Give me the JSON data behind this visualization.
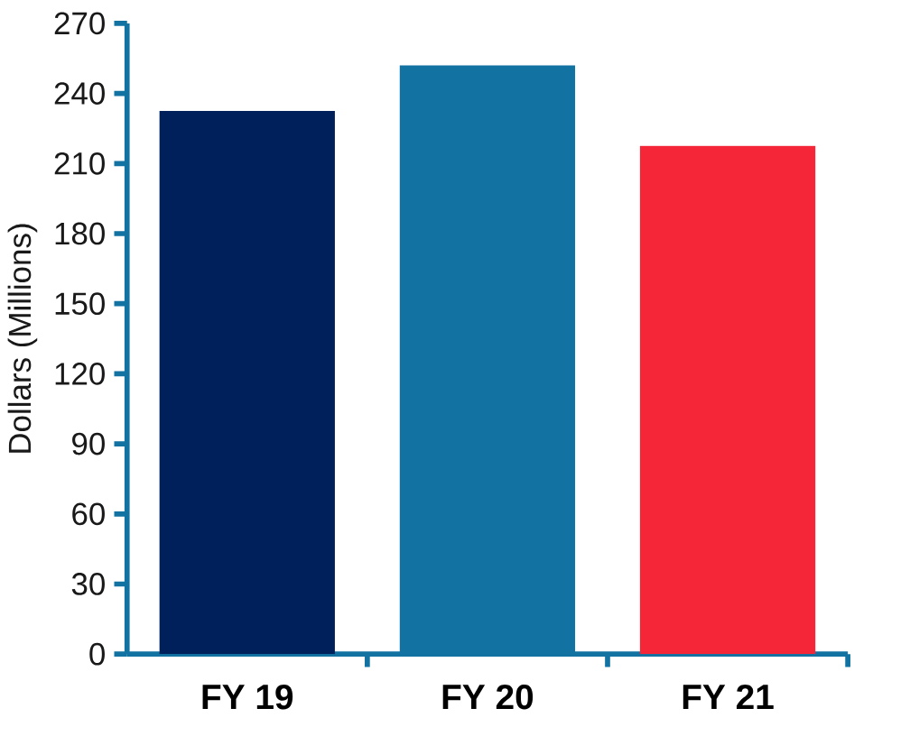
{
  "chart_data": {
    "type": "bar",
    "ylabel": "Dollars (Millions)",
    "categories": [
      "FY 19",
      "FY 20",
      "FY 21"
    ],
    "values": [
      232.5,
      252,
      217.5
    ],
    "colors": [
      "#00205b",
      "#1273a3",
      "#f42637"
    ],
    "ylim": [
      0,
      270
    ],
    "yticks": [
      0,
      30,
      60,
      90,
      120,
      150,
      180,
      210,
      240,
      270
    ],
    "grid": false
  }
}
